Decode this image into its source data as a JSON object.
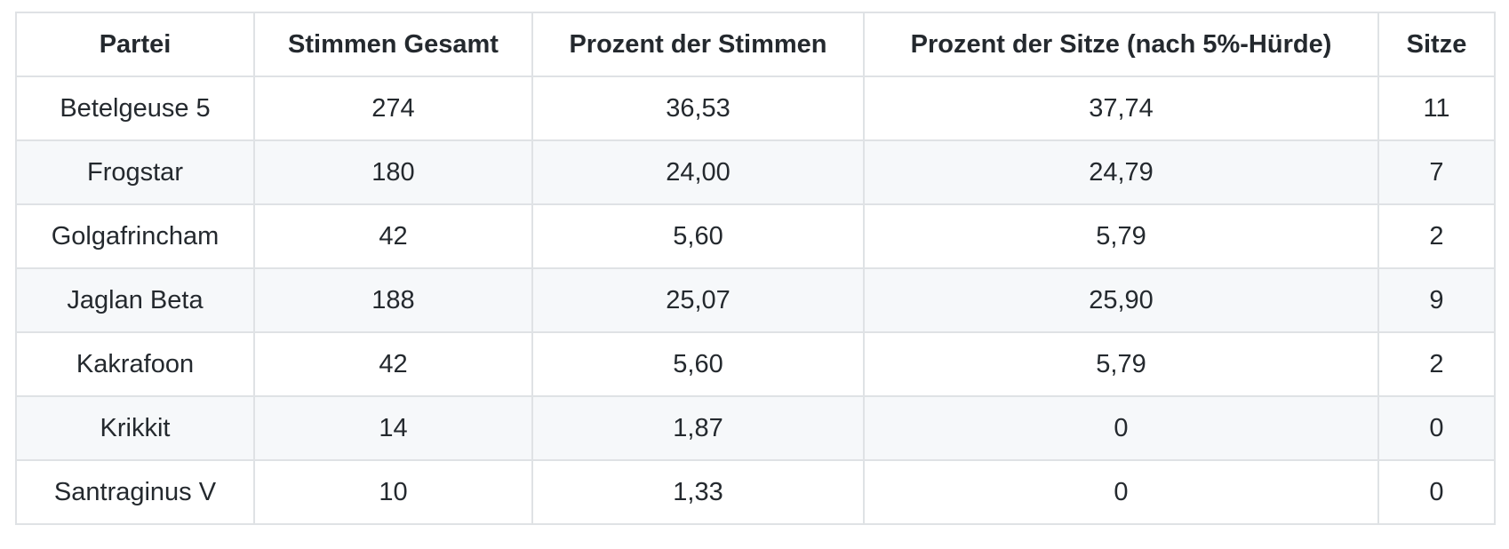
{
  "table": {
    "header": [
      "Partei",
      "Stimmen Gesamt",
      "Prozent der Stimmen",
      "Prozent der Sitze (nach 5%-Hürde)",
      "Sitze"
    ],
    "rows": [
      [
        "Betelgeuse 5",
        "274",
        "36,53",
        "37,74",
        "11"
      ],
      [
        "Frogstar",
        "180",
        "24,00",
        "24,79",
        "7"
      ],
      [
        "Golgafrincham",
        "42",
        "5,60",
        "5,79",
        "2"
      ],
      [
        "Jaglan Beta",
        "188",
        "25,07",
        "25,90",
        "9"
      ],
      [
        "Kakrafoon",
        "42",
        "5,60",
        "5,79",
        "2"
      ],
      [
        "Krikkit",
        "14",
        "1,87",
        "0",
        "0"
      ],
      [
        "Santraginus V",
        "10",
        "1,33",
        "0",
        "0"
      ]
    ]
  }
}
